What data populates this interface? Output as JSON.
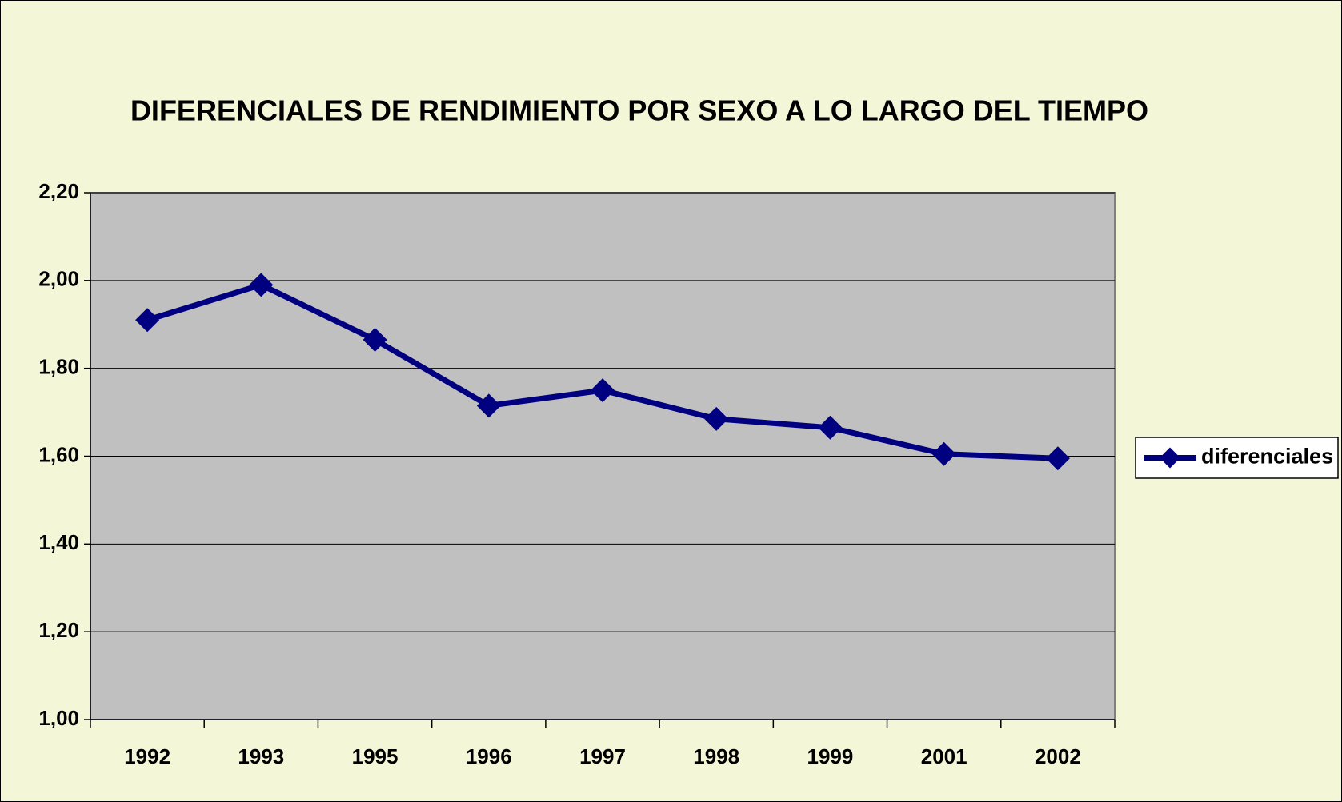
{
  "chart_data": {
    "type": "line",
    "title": "DIFERENCIALES DE RENDIMIENTO POR  SEXO A LO LARGO DEL TIEMPO",
    "categories": [
      "1992",
      "1993",
      "1995",
      "1996",
      "1997",
      "1998",
      "1999",
      "2001",
      "2002"
    ],
    "series": [
      {
        "name": "diferenciales",
        "color": "#000080",
        "values": [
          1.91,
          1.99,
          1.865,
          1.715,
          1.75,
          1.685,
          1.665,
          1.605,
          1.595
        ]
      }
    ],
    "ylim": [
      1.0,
      2.2
    ],
    "yticks": [
      {
        "value": 1.0,
        "label": "1,00"
      },
      {
        "value": 1.2,
        "label": "1,20"
      },
      {
        "value": 1.4,
        "label": "1,40"
      },
      {
        "value": 1.6,
        "label": "1,60"
      },
      {
        "value": 1.8,
        "label": "1,80"
      },
      {
        "value": 2.0,
        "label": "2,00"
      },
      {
        "value": 2.2,
        "label": "2,20"
      }
    ],
    "grid": true,
    "legend": "right"
  }
}
